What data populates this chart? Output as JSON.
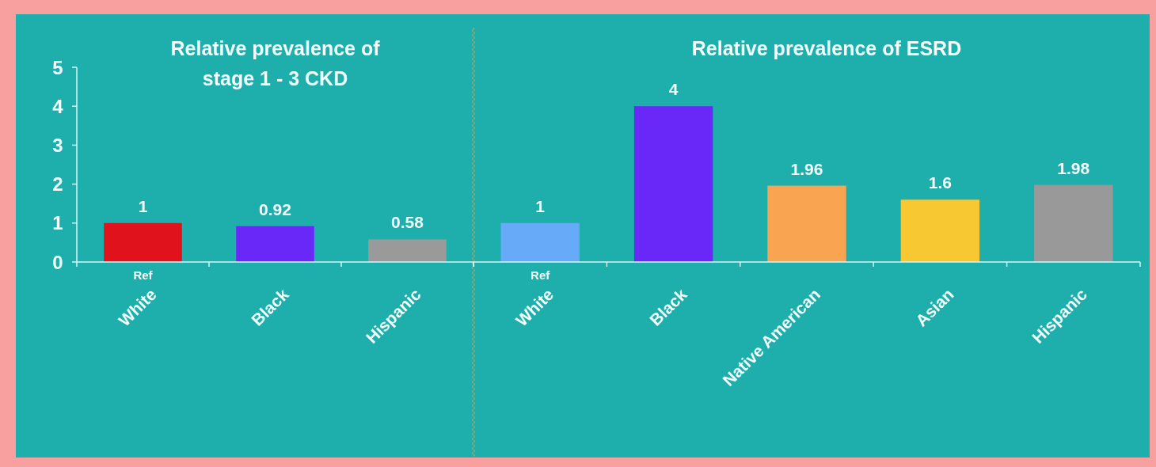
{
  "chart_data": [
    {
      "type": "bar",
      "title": "Relative prevalence of\nstage 1 - 3 CKD",
      "categories": [
        "White",
        "Black",
        "Hispanic"
      ],
      "values": [
        1,
        0.92,
        0.58
      ],
      "colors": [
        "#e0121c",
        "#6a28f8",
        "#9a9a9a"
      ],
      "ylim": [
        0,
        5
      ],
      "yticks": [
        0,
        1,
        2,
        3,
        4,
        5
      ],
      "data_labels": true,
      "annotations": [
        {
          "text": "Ref",
          "x": "White",
          "y": 0
        }
      ]
    },
    {
      "type": "bar",
      "title": "Relative prevalence of ESRD",
      "categories": [
        "White",
        "Black",
        "Native American",
        "Asian",
        "Hispanic"
      ],
      "values": [
        1,
        4,
        1.96,
        1.6,
        1.98
      ],
      "colors": [
        "#66aaf8",
        "#6a28f8",
        "#f8a450",
        "#f8c832",
        "#999999"
      ],
      "ylim": [
        0,
        5
      ],
      "yticks": [
        0,
        1,
        2,
        3,
        4,
        5
      ],
      "tick_labels": "x",
      "data_labels": true,
      "annotations": [
        {
          "text": "Ref",
          "x": "White",
          "y": 0
        }
      ]
    }
  ]
}
